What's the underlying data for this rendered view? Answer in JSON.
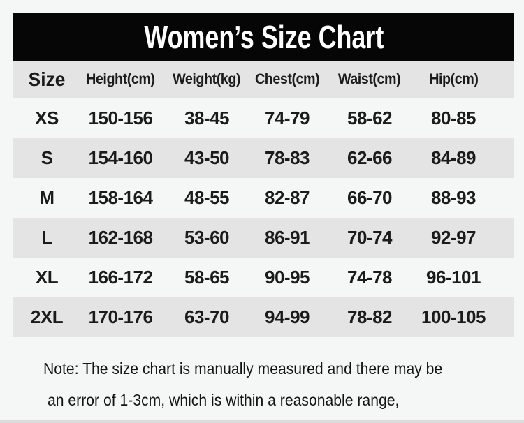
{
  "colors": {
    "page_background": "#f5f6f6",
    "banner_background": "#060606",
    "banner_text": "#ffffff",
    "stripe_gray": "#e4e4e4",
    "text": "#1b1b1b"
  },
  "banner": {
    "title": "Women’s Size Chart"
  },
  "table": {
    "columns": [
      "Size",
      "Height(cm)",
      "Weight(kg)",
      "Chest(cm)",
      "Waist(cm)",
      "Hip(cm)"
    ],
    "rows": [
      [
        "XS",
        "150-156",
        "38-45",
        "74-79",
        "58-62",
        "80-85"
      ],
      [
        "S",
        "154-160",
        "43-50",
        "78-83",
        "62-66",
        "84-89"
      ],
      [
        "M",
        "158-164",
        "48-55",
        "82-87",
        "66-70",
        "88-93"
      ],
      [
        "L",
        "162-168",
        "53-60",
        "86-91",
        "70-74",
        "92-97"
      ],
      [
        "XL",
        "166-172",
        "58-65",
        "90-95",
        "74-78",
        "96-101"
      ],
      [
        "2XL",
        "170-176",
        "63-70",
        "94-99",
        "78-82",
        "100-105"
      ]
    ]
  },
  "note": {
    "line1": "Note: The size chart is manually measured and there may be",
    "line2": "an error of 1-3cm, which is within a reasonable range,"
  }
}
